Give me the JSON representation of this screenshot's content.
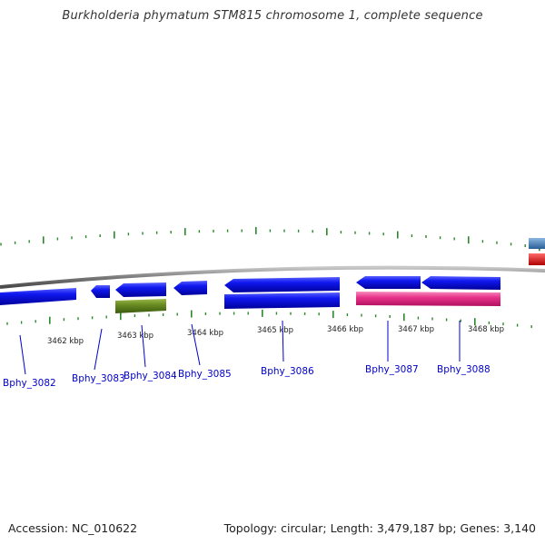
{
  "title": "Burkholderia phymatum STM815 chromosome 1, complete sequence",
  "accession": "Accession: NC_010622",
  "topology": "Topology: circular; Length: 3,479,187 bp; Genes: 3,140",
  "position_labels": [
    "3462 kbp",
    "3463 kbp",
    "3464 kbp",
    "3465 kbp",
    "3466 kbp",
    "3467 kbp",
    "3468 kbp"
  ],
  "genes": [
    {
      "name": "Bphy_3082"
    },
    {
      "name": "Bphy_3083"
    },
    {
      "name": "Bphy_3084"
    },
    {
      "name": "Bphy_3085"
    },
    {
      "name": "Bphy_3086"
    },
    {
      "name": "Bphy_3087"
    },
    {
      "name": "Bphy_3088"
    }
  ],
  "colors": {
    "cds": "#0a12e0",
    "rna": "#6a8c22",
    "pseudo": "#e8338a",
    "other_a": "#4a86c0",
    "other_b": "#e01010",
    "backbone": "#8a8a8a",
    "ticks": "#2a8a2a",
    "gene_label": "#0000cc"
  }
}
